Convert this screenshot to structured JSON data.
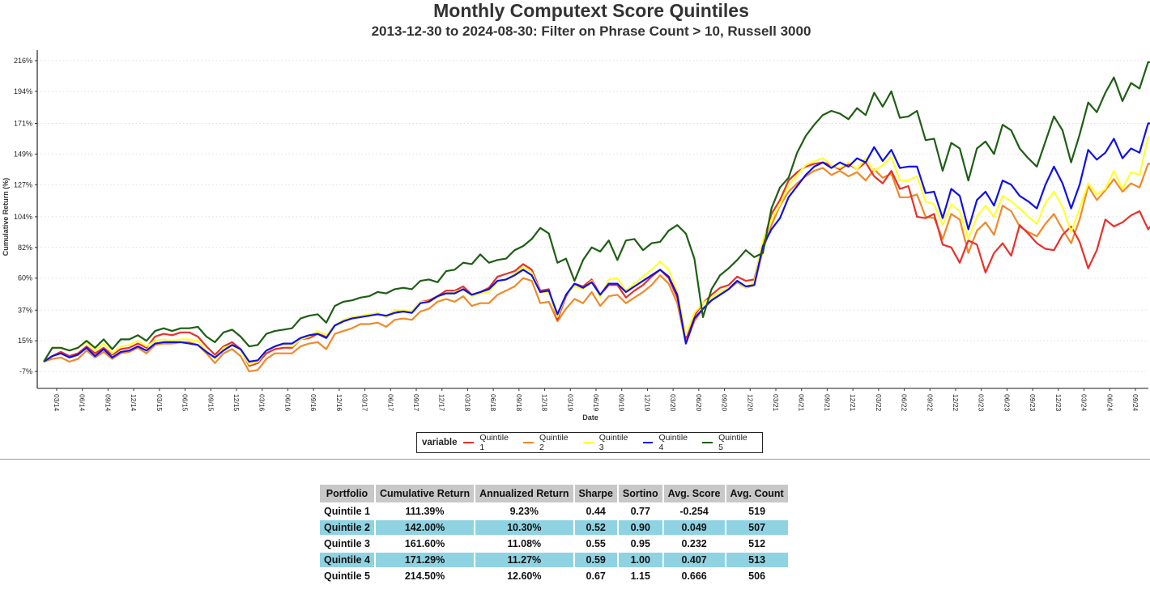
{
  "chart_data": {
    "type": "line",
    "title": "Monthly Computext Score Quintiles",
    "subtitle": "2013-12-30 to 2024-08-30: Filter on Phrase Count > 10, Russell 3000",
    "xlabel": "Date",
    "ylabel": "Cumulative Return (%)",
    "ylim": [
      -13,
      220
    ],
    "y_ticks": [
      "-7%",
      "15%",
      "37%",
      "60%",
      "82%",
      "104%",
      "127%",
      "149%",
      "171%",
      "194%",
      "216%"
    ],
    "y_tick_values": [
      -7,
      15,
      37,
      60,
      82,
      104,
      127,
      149,
      171,
      194,
      216
    ],
    "grid": "horizontal dotted",
    "x_ticks": [
      "03/14",
      "06/14",
      "09/14",
      "12/14",
      "03/15",
      "06/15",
      "09/15",
      "12/15",
      "03/16",
      "06/16",
      "09/16",
      "12/16",
      "03/17",
      "06/17",
      "09/17",
      "12/17",
      "03/18",
      "06/18",
      "09/18",
      "12/18",
      "03/19",
      "06/19",
      "09/19",
      "12/19",
      "03/20",
      "06/20",
      "09/20",
      "12/20",
      "03/21",
      "06/21",
      "09/21",
      "12/21",
      "03/22",
      "06/22",
      "09/22",
      "12/22",
      "03/23",
      "06/23",
      "09/23",
      "12/23",
      "03/24",
      "06/24",
      "09/24"
    ],
    "x_start": "12/13",
    "legend_title": "variable",
    "legend_position": "bottom",
    "series": [
      {
        "name": "Quintile 1",
        "color": "#e8312a",
        "values": [
          0,
          4,
          7,
          4,
          6,
          11,
          6,
          10,
          5,
          9,
          10,
          13,
          10,
          18,
          20,
          19,
          21,
          21,
          18,
          11,
          5,
          11,
          14,
          9,
          -3,
          -1,
          6,
          9,
          10,
          10,
          16,
          17,
          20,
          18,
          26,
          29,
          31,
          33,
          33,
          35,
          32,
          37,
          36,
          36,
          43,
          44,
          47,
          51,
          51,
          54,
          48,
          50,
          53,
          61,
          63,
          65,
          70,
          66,
          51,
          52,
          30,
          47,
          56,
          54,
          59,
          48,
          55,
          55,
          46,
          51,
          55,
          61,
          66,
          60,
          46,
          17,
          33,
          42,
          48,
          53,
          55,
          61,
          58,
          59,
          85,
          106,
          116,
          130,
          136,
          140,
          142,
          143,
          141,
          138,
          142,
          138,
          143,
          133,
          128,
          137,
          124,
          126,
          104,
          103,
          106,
          84,
          82,
          71,
          87,
          84,
          64,
          78,
          85,
          76,
          98,
          92,
          85,
          81,
          80,
          91,
          97,
          86,
          67,
          80,
          102,
          97,
          100,
          105,
          108,
          95,
          103,
          98,
          115,
          112,
          111
        ],
        "final": 111.39
      },
      {
        "name": "Quintile 2",
        "color": "#f0892a",
        "values": [
          0,
          2,
          3,
          0,
          2,
          8,
          3,
          7,
          2,
          6,
          7,
          10,
          6,
          12,
          13,
          13,
          14,
          14,
          12,
          6,
          -1,
          6,
          9,
          4,
          -7,
          -6,
          2,
          6,
          6,
          6,
          11,
          13,
          14,
          9,
          20,
          22,
          24,
          27,
          27,
          28,
          25,
          30,
          31,
          30,
          36,
          38,
          43,
          45,
          43,
          47,
          40,
          42,
          42,
          48,
          51,
          54,
          60,
          58,
          42,
          43,
          29,
          38,
          45,
          42,
          50,
          40,
          47,
          48,
          42,
          46,
          50,
          55,
          62,
          56,
          42,
          13,
          29,
          38,
          44,
          48,
          52,
          57,
          53,
          55,
          80,
          98,
          112,
          122,
          128,
          133,
          137,
          139,
          134,
          137,
          133,
          136,
          130,
          138,
          132,
          135,
          118,
          118,
          120,
          104,
          103,
          88,
          106,
          102,
          78,
          94,
          100,
          91,
          112,
          108,
          97,
          93,
          90,
          99,
          106,
          95,
          85,
          102,
          126,
          116,
          123,
          131,
          122,
          128,
          125,
          142,
          142,
          140
        ],
        "final": 142.0
      },
      {
        "name": "Quintile 3",
        "color": "#ffff33",
        "values": [
          0,
          10,
          10,
          8,
          10,
          14,
          8,
          13,
          6,
          11,
          12,
          15,
          11,
          15,
          16,
          15,
          16,
          16,
          15,
          8,
          2,
          10,
          12,
          8,
          -2,
          0,
          8,
          11,
          12,
          11,
          16,
          18,
          22,
          19,
          26,
          30,
          32,
          33,
          34,
          35,
          32,
          37,
          37,
          36,
          43,
          43,
          46,
          49,
          50,
          52,
          47,
          49,
          50,
          57,
          59,
          63,
          68,
          64,
          50,
          50,
          32,
          48,
          54,
          52,
          58,
          46,
          59,
          60,
          51,
          56,
          61,
          66,
          72,
          66,
          50,
          19,
          35,
          42,
          46,
          50,
          53,
          58,
          53,
          57,
          87,
          102,
          113,
          126,
          134,
          141,
          144,
          146,
          141,
          139,
          143,
          138,
          146,
          137,
          141,
          147,
          130,
          130,
          133,
          115,
          113,
          98,
          113,
          108,
          88,
          104,
          112,
          104,
          119,
          115,
          110,
          104,
          99,
          114,
          122,
          111,
          93,
          110,
          128,
          120,
          124,
          137,
          124,
          136,
          134,
          161,
          160,
          160
        ],
        "final": 161.6
      },
      {
        "name": "Quintile 4",
        "color": "#1010e8",
        "values": [
          0,
          4,
          6,
          3,
          5,
          10,
          4,
          9,
          3,
          7,
          8,
          11,
          8,
          13,
          14,
          14,
          14,
          13,
          12,
          7,
          3,
          8,
          12,
          9,
          0,
          1,
          8,
          11,
          13,
          13,
          17,
          19,
          20,
          17,
          26,
          29,
          31,
          32,
          33,
          34,
          33,
          35,
          36,
          35,
          42,
          43,
          47,
          49,
          49,
          52,
          48,
          50,
          52,
          58,
          59,
          62,
          66,
          62,
          50,
          51,
          34,
          48,
          56,
          53,
          57,
          48,
          56,
          56,
          50,
          54,
          58,
          62,
          66,
          61,
          48,
          13,
          31,
          38,
          44,
          48,
          52,
          58,
          54,
          55,
          83,
          95,
          103,
          118,
          126,
          134,
          140,
          143,
          139,
          143,
          140,
          146,
          143,
          154,
          144,
          152,
          139,
          140,
          140,
          121,
          122,
          103,
          124,
          119,
          95,
          116,
          122,
          112,
          130,
          127,
          119,
          115,
          110,
          127,
          140,
          128,
          110,
          127,
          152,
          145,
          150,
          160,
          146,
          153,
          150,
          171,
          171,
          171
        ],
        "final": 171.29
      },
      {
        "name": "Quintile 5",
        "color": "#1e5e14",
        "values": [
          0,
          10,
          10,
          8,
          10,
          15,
          10,
          16,
          9,
          16,
          16,
          19,
          15,
          22,
          24,
          22,
          24,
          24,
          25,
          18,
          14,
          21,
          23,
          18,
          11,
          12,
          20,
          22,
          23,
          24,
          31,
          33,
          34,
          28,
          40,
          43,
          44,
          46,
          47,
          50,
          49,
          52,
          53,
          52,
          58,
          59,
          57,
          65,
          66,
          71,
          70,
          77,
          71,
          73,
          74,
          80,
          83,
          88,
          96,
          92,
          71,
          74,
          58,
          73,
          82,
          79,
          87,
          73,
          87,
          88,
          80,
          85,
          86,
          94,
          98,
          92,
          74,
          32,
          52,
          62,
          67,
          73,
          80,
          75,
          78,
          110,
          125,
          132,
          150,
          162,
          170,
          177,
          180,
          178,
          174,
          182,
          177,
          193,
          183,
          194,
          175,
          176,
          180,
          159,
          160,
          137,
          157,
          153,
          130,
          153,
          158,
          149,
          170,
          166,
          153,
          146,
          140,
          158,
          176,
          166,
          143,
          163,
          186,
          179,
          193,
          204,
          187,
          200,
          196,
          215,
          214,
          214
        ],
        "final": 214.5
      }
    ]
  },
  "table": {
    "headers": [
      "Portfolio",
      "Cumulative Return",
      "Annualized Return",
      "Sharpe",
      "Sortino",
      "Avg. Score",
      "Avg. Count"
    ],
    "rows": [
      [
        "Quintile 1",
        "111.39%",
        "9.23%",
        "0.44",
        "0.77",
        "-0.254",
        "519"
      ],
      [
        "Quintile 2",
        "142.00%",
        "10.30%",
        "0.52",
        "0.90",
        "0.049",
        "507"
      ],
      [
        "Quintile 3",
        "161.60%",
        "11.08%",
        "0.55",
        "0.95",
        "0.232",
        "512"
      ],
      [
        "Quintile 4",
        "171.29%",
        "11.27%",
        "0.59",
        "1.00",
        "0.407",
        "513"
      ],
      [
        "Quintile 5",
        "214.50%",
        "12.60%",
        "0.67",
        "1.15",
        "0.666",
        "506"
      ]
    ],
    "header_bg": "#c8c8c8",
    "alt_row_bg": "#8fd3e3"
  }
}
